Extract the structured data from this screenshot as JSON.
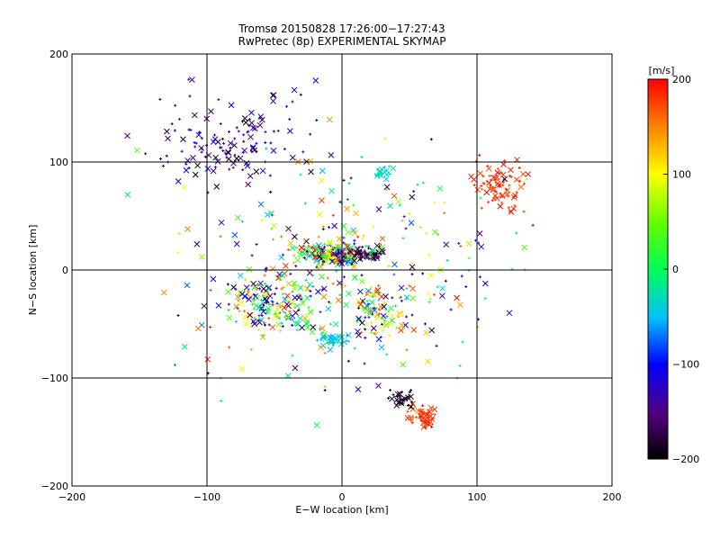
{
  "chart_data": {
    "type": "scatter",
    "title": "Tromsø 20150828 17:26:00−17:27:43",
    "subtitle": "RwPretec (8p) EXPERIMENTAL SKYMAP",
    "xlabel": "E−W location [km]",
    "ylabel": "N−S location [km]",
    "xlim": [
      -200,
      200
    ],
    "ylim": [
      -200,
      200
    ],
    "xticks": [
      -200,
      -100,
      0,
      100,
      200
    ],
    "yticks": [
      -200,
      -100,
      0,
      100,
      200
    ],
    "xtick_labels": [
      "−200",
      "−100",
      "0",
      "100",
      "200"
    ],
    "ytick_labels": [
      "−200",
      "−100",
      "0",
      "100",
      "200"
    ],
    "grid": true,
    "markers": [
      "x",
      "+"
    ],
    "colorbar": {
      "label": "[m/s]",
      "range": [
        -200,
        200
      ],
      "ticks": [
        200,
        100,
        0,
        -100,
        -200
      ],
      "tick_labels": [
        "200",
        "100",
        "0",
        "−100",
        "−200"
      ],
      "colormap": "rainbow-black-to-red"
    },
    "clusters": [
      {
        "x": -10,
        "y": 15,
        "spread": [
          25,
          12
        ],
        "n": 220,
        "speed": [
          -200,
          200
        ]
      },
      {
        "x": 20,
        "y": 15,
        "spread": [
          10,
          6
        ],
        "n": 60,
        "speed": [
          -200,
          -150
        ]
      },
      {
        "x": -50,
        "y": -30,
        "spread": [
          35,
          25
        ],
        "n": 160,
        "speed": [
          -200,
          200
        ]
      },
      {
        "x": -5,
        "y": -65,
        "spread": [
          12,
          8
        ],
        "n": 40,
        "speed": [
          -60,
          -30
        ]
      },
      {
        "x": 25,
        "y": -40,
        "spread": [
          20,
          25
        ],
        "n": 80,
        "speed": [
          -200,
          200
        ]
      },
      {
        "x": 115,
        "y": 80,
        "spread": [
          18,
          25
        ],
        "n": 90,
        "speed": [
          160,
          200
        ]
      },
      {
        "x": 60,
        "y": -135,
        "spread": [
          12,
          10
        ],
        "n": 60,
        "speed": [
          160,
          200
        ]
      },
      {
        "x": 45,
        "y": -118,
        "spread": [
          10,
          8
        ],
        "n": 30,
        "speed": [
          -200,
          -180
        ]
      },
      {
        "x": 30,
        "y": 90,
        "spread": [
          8,
          5
        ],
        "n": 25,
        "speed": [
          -40,
          -20
        ]
      },
      {
        "x": -80,
        "y": 120,
        "spread": [
          55,
          45
        ],
        "n": 140,
        "speed": [
          -200,
          -100
        ]
      },
      {
        "x": 0,
        "y": 0,
        "spread": [
          130,
          110
        ],
        "n": 320,
        "speed": [
          -200,
          200
        ]
      }
    ]
  }
}
